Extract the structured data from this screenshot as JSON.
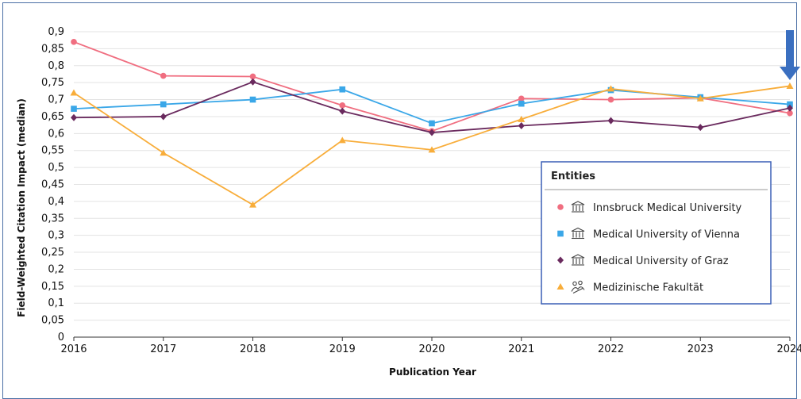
{
  "chart_data": {
    "type": "line",
    "xlabel": "Publication Year",
    "ylabel": "Field-Weighted Citation Impact (median)",
    "x": [
      "2016",
      "2017",
      "2018",
      "2019",
      "2020",
      "2021",
      "2022",
      "2023",
      "2024"
    ],
    "ylim": [
      0,
      0.9
    ],
    "yticks": [
      "0",
      "0,05",
      "0,1",
      "0,15",
      "0,2",
      "0,25",
      "0,3",
      "0,35",
      "0,4",
      "0,45",
      "0,5",
      "0,55",
      "0,6",
      "0,65",
      "0,7",
      "0,75",
      "0,8",
      "0,85",
      "0,9"
    ],
    "grid": "horizontal",
    "legend": {
      "title": "Entities",
      "position": "right-middle"
    },
    "series": [
      {
        "name": "Innsbruck Medical University",
        "color": "#f06e80",
        "marker": "circle",
        "icon": "institution-icon",
        "values": [
          0.87,
          0.77,
          0.768,
          0.683,
          0.607,
          0.703,
          0.7,
          0.705,
          0.66
        ]
      },
      {
        "name": "Medical University of Vienna",
        "color": "#3aa7e8",
        "marker": "square",
        "icon": "institution-icon",
        "values": [
          0.673,
          0.686,
          0.7,
          0.73,
          0.63,
          0.688,
          0.728,
          0.707,
          0.686
        ]
      },
      {
        "name": "Medical University of Graz",
        "color": "#6a2a5e",
        "marker": "diamond",
        "icon": "institution-icon",
        "values": [
          0.647,
          0.65,
          0.752,
          0.666,
          0.603,
          0.623,
          0.638,
          0.618,
          0.675
        ]
      },
      {
        "name": "Medizinische Fakultät",
        "color": "#f8ad3a",
        "marker": "triangle",
        "icon": "research-group-icon",
        "values": [
          0.72,
          0.543,
          0.39,
          0.58,
          0.552,
          0.642,
          0.732,
          0.703,
          0.74
        ]
      }
    ],
    "annotation": {
      "type": "arrow-down",
      "color": "#3a6fc0",
      "at_x": "2024"
    }
  }
}
